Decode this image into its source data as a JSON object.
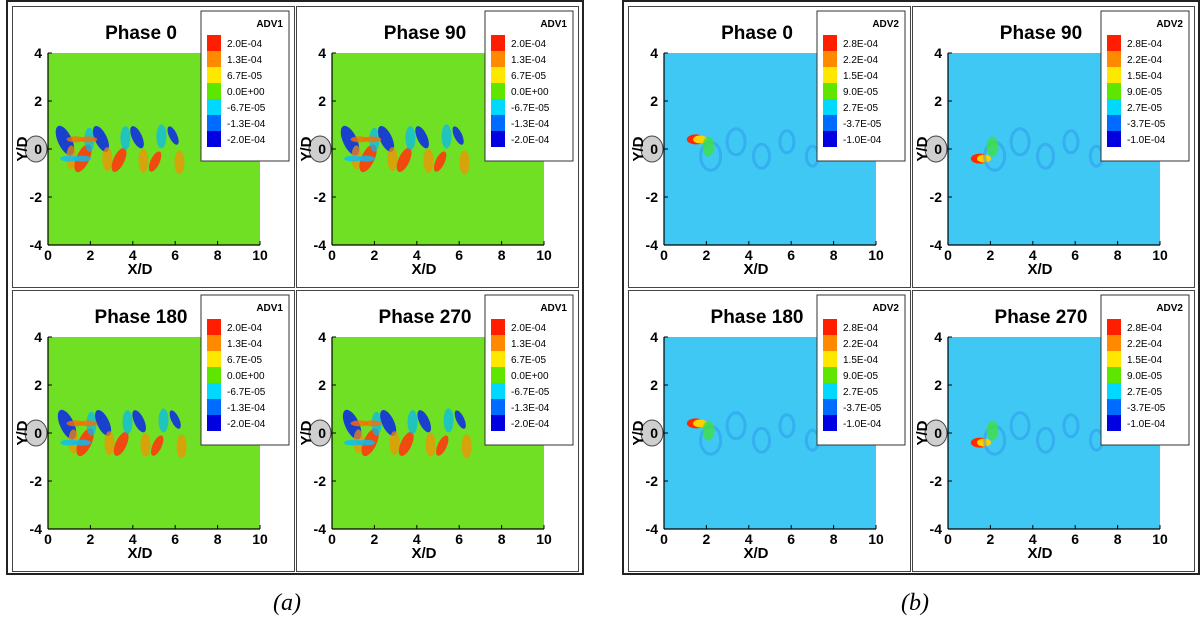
{
  "groups": [
    {
      "caption": "(a)",
      "legend_title": "ADV1",
      "legend_levels": [
        "2.0E-04",
        "1.3E-04",
        "6.7E-05",
        "0.0E+00",
        "-6.7E-05",
        "-1.3E-04",
        "-2.0E-04"
      ],
      "legend_colors": [
        "#ff1f00",
        "#ff8a00",
        "#ffe800",
        "#5fe600",
        "#00d8ff",
        "#006cff",
        "#0000e0"
      ],
      "background_color": "#6fe024",
      "panels": [
        {
          "title": "Phase 0"
        },
        {
          "title": "Phase 90"
        },
        {
          "title": "Phase 180"
        },
        {
          "title": "Phase 270"
        }
      ]
    },
    {
      "caption": "(b)",
      "legend_title": "ADV2",
      "legend_levels": [
        "2.8E-04",
        "2.2E-04",
        "1.5E-04",
        "9.0E-05",
        "2.7E-05",
        "-3.7E-05",
        "-1.0E-04"
      ],
      "legend_colors": [
        "#ff1f00",
        "#ff8a00",
        "#ffe800",
        "#5fe600",
        "#00d8ff",
        "#006cff",
        "#0000e0"
      ],
      "background_color": "#3fc8f4",
      "panels": [
        {
          "title": "Phase 0"
        },
        {
          "title": "Phase 90"
        },
        {
          "title": "Phase 180"
        },
        {
          "title": "Phase 270"
        }
      ]
    }
  ],
  "axes": {
    "x_label": "X/D",
    "y_label": "Y/D",
    "x_ticks": [
      "0",
      "2",
      "4",
      "6",
      "8",
      "10"
    ],
    "y_ticks": [
      "4",
      "2",
      "0",
      "-2",
      "-4"
    ]
  }
}
